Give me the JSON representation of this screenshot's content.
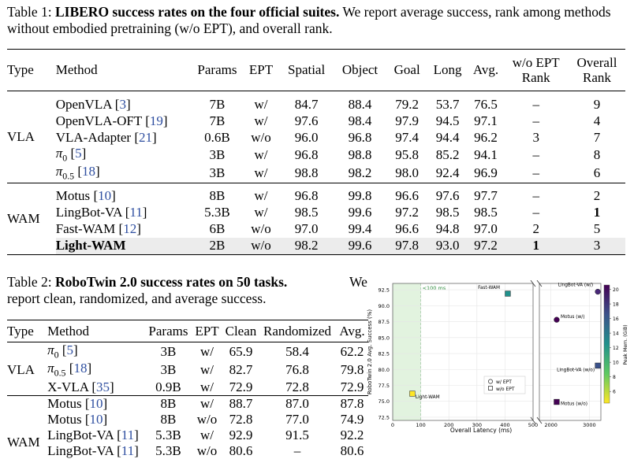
{
  "table1": {
    "label": "Table 1:",
    "title": "LIBERO success rates on the four official suites.",
    "desc": "We report average success, rank among methods without embodied pretraining (w/o EPT), and overall rank.",
    "headers": [
      "Type",
      "Method",
      "Params",
      "EPT",
      "Spatial",
      "Object",
      "Goal",
      "Long",
      "Avg.",
      "w/o EPT Rank",
      "Overall Rank"
    ],
    "groups": [
      {
        "type": "VLA",
        "rows": [
          {
            "method": "OpenVLA",
            "ref": "3",
            "params": "7B",
            "ept": "w/",
            "spatial": "84.7",
            "object": "88.4",
            "goal": "79.2",
            "long": "53.7",
            "avg": "76.5",
            "woept": "–",
            "overall": "9"
          },
          {
            "method": "OpenVLA-OFT",
            "ref": "19",
            "params": "7B",
            "ept": "w/",
            "spatial": "97.6",
            "object": "98.4",
            "goal": "97.9",
            "long": "94.5",
            "avg": "97.1",
            "woept": "–",
            "overall": "4"
          },
          {
            "method": "VLA-Adapter",
            "ref": "21",
            "params": "0.6B",
            "ept": "w/o",
            "spatial": "96.0",
            "object": "96.8",
            "goal": "97.4",
            "long": "94.4",
            "avg": "96.2",
            "woept": "3",
            "overall": "7"
          },
          {
            "method": "π0",
            "ref": "5",
            "params": "3B",
            "ept": "w/",
            "spatial": "96.8",
            "object": "98.8",
            "goal": "95.8",
            "long": "85.2",
            "avg": "94.1",
            "woept": "–",
            "overall": "8"
          },
          {
            "method": "π0.5",
            "ref": "18",
            "params": "3B",
            "ept": "w/",
            "spatial": "98.8",
            "object": "98.2",
            "goal": "98.0",
            "long": "92.4",
            "avg": "96.9",
            "woept": "–",
            "overall": "6"
          }
        ]
      },
      {
        "type": "WAM",
        "rows": [
          {
            "method": "Motus",
            "ref": "10",
            "params": "8B",
            "ept": "w/",
            "spatial": "96.8",
            "object": "99.8",
            "goal": "96.6",
            "long": "97.6",
            "avg": "97.7",
            "woept": "–",
            "overall": "2"
          },
          {
            "method": "LingBot-VA",
            "ref": "11",
            "params": "5.3B",
            "ept": "w/",
            "spatial": "98.5",
            "object": "99.6",
            "goal": "97.2",
            "long": "98.5",
            "avg": "98.5",
            "woept": "–",
            "overall": "1"
          },
          {
            "method": "Fast-WAM",
            "ref": "12",
            "params": "6B",
            "ept": "w/o",
            "spatial": "97.0",
            "object": "99.4",
            "goal": "96.6",
            "long": "94.8",
            "avg": "97.0",
            "woept": "2",
            "overall": "5"
          },
          {
            "method": "Light-WAM",
            "ref": "",
            "params": "2B",
            "ept": "w/o",
            "spatial": "98.2",
            "object": "99.6",
            "goal": "97.8",
            "long": "93.0",
            "avg": "97.2",
            "woept": "1",
            "overall": "3"
          }
        ]
      }
    ]
  },
  "table2": {
    "label": "Table 2:",
    "title": "RoboTwin 2.0 success rates on 50 tasks.",
    "desc1": "We",
    "desc2": "report clean, randomized, and average success.",
    "headers": [
      "Type",
      "Method",
      "Params",
      "EPT",
      "Clean",
      "Randomized",
      "Avg."
    ],
    "rows": [
      {
        "type": "",
        "method": "π0",
        "ref": "5",
        "params": "3B",
        "ept": "w/",
        "clean": "65.9",
        "rand": "58.4",
        "avg": "62.2"
      },
      {
        "type": "VLA",
        "method": "π0.5",
        "ref": "18",
        "params": "3B",
        "ept": "w/",
        "clean": "82.7",
        "rand": "76.8",
        "avg": "79.8"
      },
      {
        "type": "",
        "method": "X-VLA",
        "ref": "35",
        "params": "0.9B",
        "ept": "w/",
        "clean": "72.9",
        "rand": "72.8",
        "avg": "72.9"
      },
      {
        "type": "",
        "method": "Motus",
        "ref": "10",
        "params": "8B",
        "ept": "w/",
        "clean": "88.7",
        "rand": "87.0",
        "avg": "87.8"
      },
      {
        "type": "",
        "method": "Motus",
        "ref": "10",
        "params": "8B",
        "ept": "w/o",
        "clean": "72.8",
        "rand": "77.0",
        "avg": "74.9"
      },
      {
        "type": "",
        "method": "LingBot-VA",
        "ref": "11",
        "params": "5.3B",
        "ept": "w/",
        "clean": "92.9",
        "rand": "91.5",
        "avg": "92.2"
      },
      {
        "type": "",
        "method": "LingBot-VA",
        "ref": "11",
        "params": "5.3B",
        "ept": "w/o",
        "clean": "80.6",
        "rand": "–",
        "avg": "80.6"
      }
    ],
    "wam_label": "WAM"
  },
  "chart_data": {
    "type": "scatter",
    "xlabel": "Overall Latency (ms)",
    "ylabel": "RoboTwin 2.0 Avg. Success (%)",
    "colorbar_label": "Peak Mem. (GiB)",
    "colorbar_ticks": [
      "6",
      "8",
      "10",
      "12",
      "14",
      "16",
      "18",
      "20"
    ],
    "x_ticks": [
      "0",
      "100",
      "200",
      "300",
      "400",
      "500",
      "2000",
      "3000"
    ],
    "y_ticks": [
      "72.5",
      "75.0",
      "77.5",
      "80.0",
      "82.5",
      "85.0",
      "87.5",
      "90.0",
      "92.5"
    ],
    "ylim": [
      72.0,
      93.5
    ],
    "threshold_label": "<100 ms",
    "threshold_x": 100,
    "legend": [
      "w/ EPT",
      "w/o EPT"
    ],
    "points": [
      {
        "label": "Light-WAM",
        "x": 70,
        "y": 76.2,
        "mem": 5,
        "marker": "square",
        "color": "#fde725"
      },
      {
        "label": "Fast-WAM",
        "x": 410,
        "y": 91.9,
        "mem": 11,
        "marker": "square",
        "color": "#21918c"
      },
      {
        "label": "Motus (w/)",
        "x": 2150,
        "y": 87.8,
        "mem": 19,
        "marker": "circle",
        "color": "#440154"
      },
      {
        "label": "Motus (w/o)",
        "x": 2150,
        "y": 74.9,
        "mem": 19,
        "marker": "square",
        "color": "#440154"
      },
      {
        "label": "LingBot-VA (w/)",
        "x": 3220,
        "y": 92.2,
        "mem": 17,
        "marker": "circle",
        "color": "#482878"
      },
      {
        "label": "LingBot-VA (w/o)",
        "x": 3220,
        "y": 80.6,
        "mem": 17,
        "marker": "square",
        "color": "#3b528b"
      }
    ]
  }
}
